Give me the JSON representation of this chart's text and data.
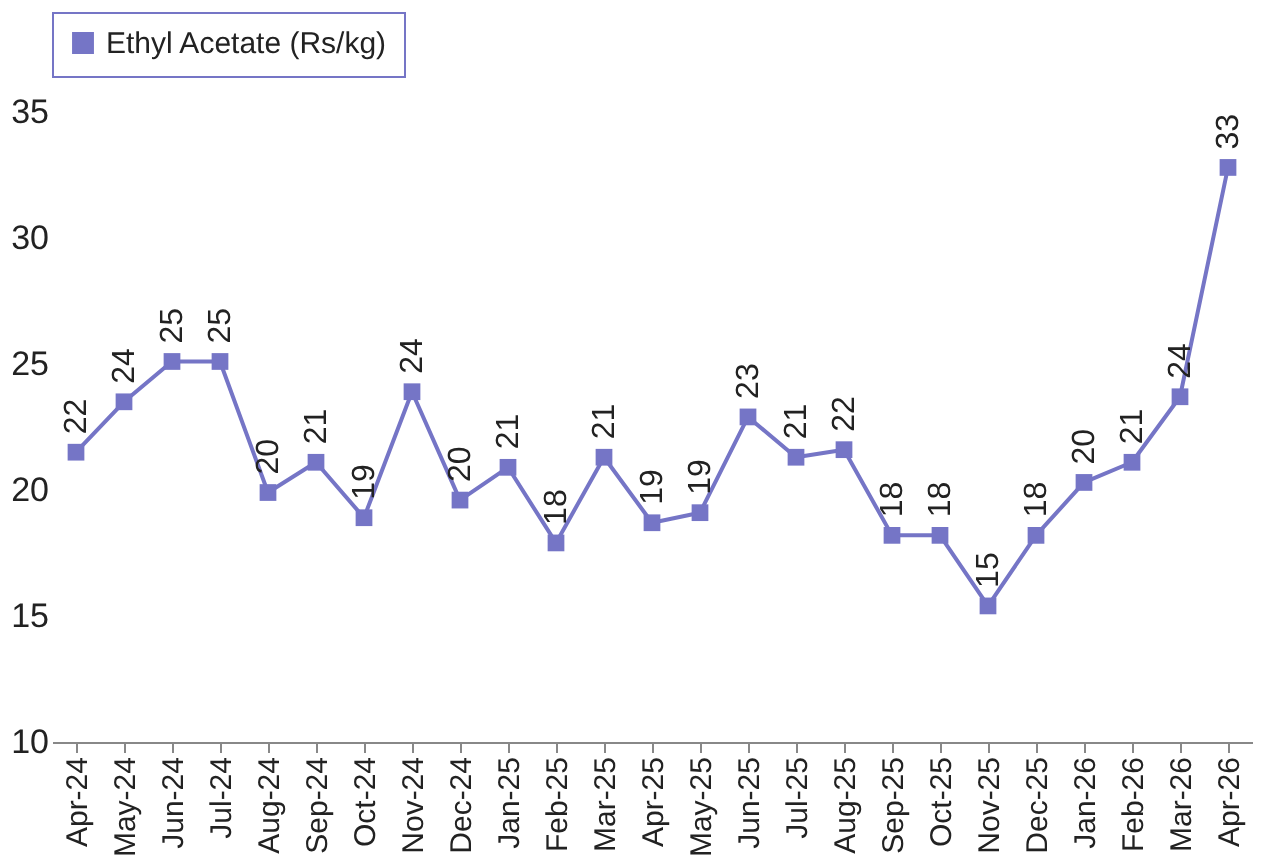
{
  "chart_data": {
    "type": "line",
    "categories": [
      "Apr-24",
      "May-24",
      "Jun-24",
      "Jul-24",
      "Aug-24",
      "Sep-24",
      "Oct-24",
      "Nov-24",
      "Dec-24",
      "Jan-25",
      "Feb-25",
      "Mar-25",
      "Apr-25",
      "May-25",
      "Jun-25",
      "Jul-25",
      "Aug-25",
      "Sep-25",
      "Oct-25",
      "Nov-25",
      "Dec-25",
      "Jan-26",
      "Feb-26",
      "Mar-26",
      "Apr-26"
    ],
    "series": [
      {
        "name": "Ethyl Acetate (Rs/kg)",
        "color": "#7575c6",
        "values": [
          21.5,
          23.5,
          25.1,
          25.1,
          19.9,
          21.1,
          18.9,
          23.9,
          19.6,
          20.9,
          17.9,
          21.3,
          18.7,
          19.1,
          22.9,
          21.3,
          21.6,
          18.2,
          18.2,
          15.4,
          18.2,
          20.3,
          21.1,
          23.7,
          32.8
        ],
        "value_labels": [
          "22",
          "24",
          "25",
          "25",
          "20",
          "21",
          "19",
          "24",
          "20",
          "21",
          "18",
          "21",
          "19",
          "19",
          "23",
          "21",
          "22",
          "18",
          "18",
          "15",
          "18",
          "20",
          "21",
          "24",
          "33"
        ]
      }
    ],
    "ylim": [
      10,
      35
    ],
    "yticks": [
      10,
      15,
      20,
      25,
      30,
      35
    ],
    "grid": false,
    "legend": "top",
    "marker": "square",
    "line_style": "solid"
  }
}
